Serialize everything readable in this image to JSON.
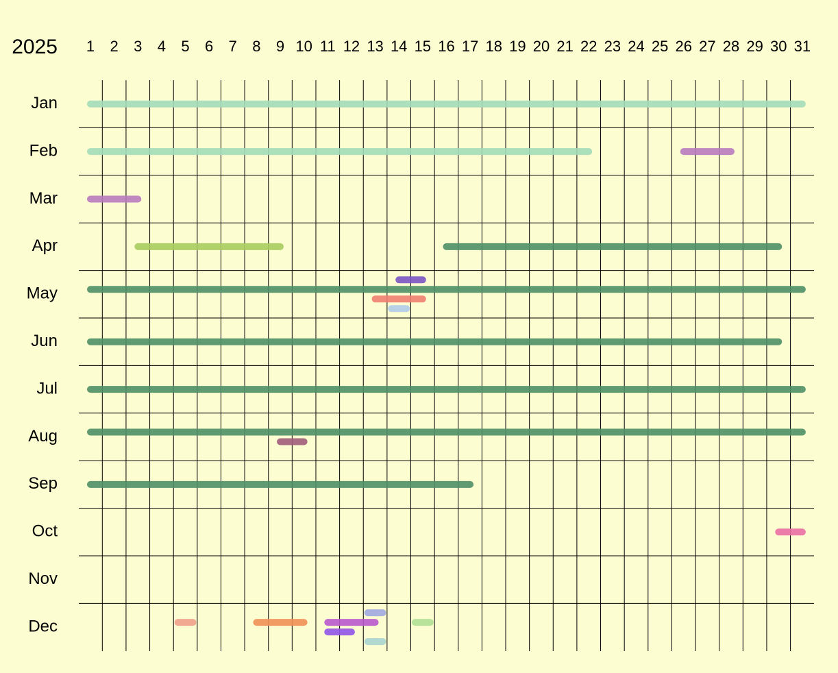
{
  "year": "2025",
  "days": [
    1,
    2,
    3,
    4,
    5,
    6,
    7,
    8,
    9,
    10,
    11,
    12,
    13,
    14,
    15,
    16,
    17,
    18,
    19,
    20,
    21,
    22,
    23,
    24,
    25,
    26,
    27,
    28,
    29,
    30,
    31
  ],
  "months": [
    {
      "label": "Jan",
      "lanes": [
        [
          {
            "start": 1,
            "end": 31,
            "color": "#a3dcb8"
          }
        ]
      ]
    },
    {
      "label": "Feb",
      "lanes": [
        [
          {
            "start": 1,
            "end": 22,
            "color": "#a3dcb8"
          },
          {
            "start": 26,
            "end": 28,
            "color": "#b87bbf"
          }
        ]
      ]
    },
    {
      "label": "Mar",
      "lanes": [
        [
          {
            "start": 1,
            "end": 3,
            "color": "#b87bbf"
          }
        ]
      ]
    },
    {
      "label": "Apr",
      "lanes": [
        [
          {
            "start": 3,
            "end": 9,
            "color": "#a9cc5f"
          },
          {
            "start": 16,
            "end": 30,
            "color": "#4f8f66"
          }
        ]
      ]
    },
    {
      "label": "May",
      "lanes": [
        [
          {
            "start": 14,
            "end": 15,
            "color": "#7a55c4"
          }
        ],
        [
          {
            "start": 1,
            "end": 31,
            "color": "#4f8f66"
          }
        ],
        [
          {
            "start": 13,
            "end": 15,
            "color": "#ef8070"
          }
        ],
        [
          {
            "start": 14,
            "end": 14,
            "color": "#b0cce8"
          }
        ]
      ]
    },
    {
      "label": "Jun",
      "lanes": [
        [
          {
            "start": 1,
            "end": 30,
            "color": "#4f8f66"
          }
        ]
      ]
    },
    {
      "label": "Jul",
      "lanes": [
        [
          {
            "start": 1,
            "end": 31,
            "color": "#4f8f66"
          }
        ]
      ]
    },
    {
      "label": "Aug",
      "lanes": [
        [
          {
            "start": 1,
            "end": 31,
            "color": "#4f8f66"
          }
        ],
        [
          {
            "start": 9,
            "end": 10,
            "color": "#a05c7a"
          }
        ]
      ]
    },
    {
      "label": "Sep",
      "lanes": [
        [
          {
            "start": 1,
            "end": 17,
            "color": "#4f8f66"
          }
        ]
      ]
    },
    {
      "label": "Oct",
      "lanes": [
        [
          {
            "start": 30,
            "end": 31,
            "color": "#ea6fa3"
          }
        ]
      ]
    },
    {
      "label": "Nov",
      "lanes": []
    },
    {
      "label": "Dec",
      "lanes": [
        [
          {
            "start": 13,
            "end": 13,
            "color": "#a0a8e0"
          }
        ],
        [
          {
            "start": 5,
            "end": 5,
            "color": "#f0a08a"
          },
          {
            "start": 8,
            "end": 10,
            "color": "#ef9055"
          },
          {
            "start": 11,
            "end": 13,
            "color": "#b858cc"
          },
          {
            "start": 15,
            "end": 15,
            "color": "#b0e095"
          }
        ],
        [
          {
            "start": 11,
            "end": 12,
            "color": "#9055e8"
          }
        ],
        [
          {
            "start": 13,
            "end": 13,
            "color": "#a8d4d0"
          }
        ]
      ]
    }
  ]
}
